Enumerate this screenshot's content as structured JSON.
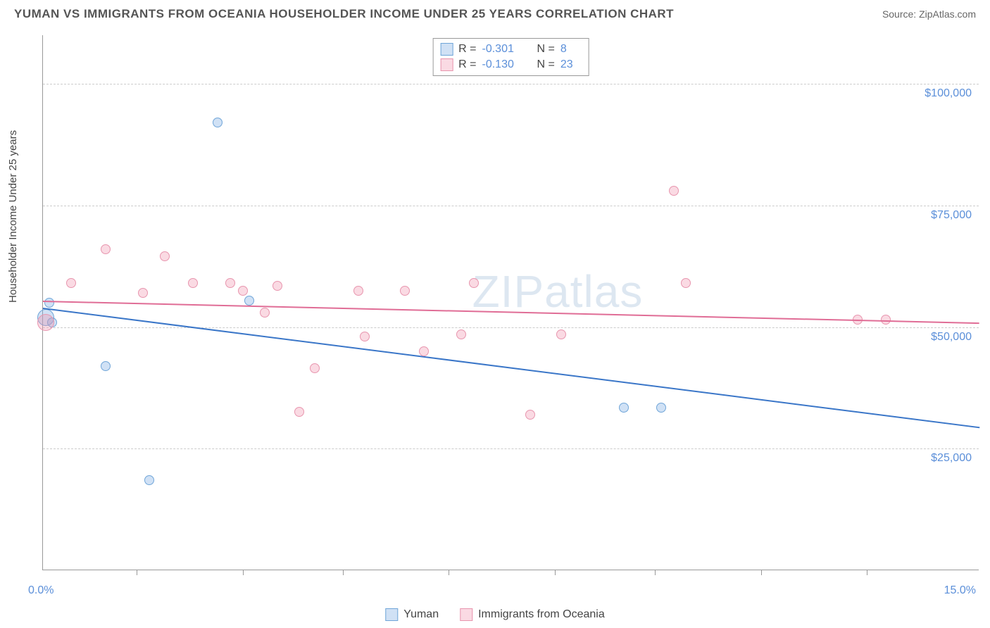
{
  "header": {
    "title": "YUMAN VS IMMIGRANTS FROM OCEANIA HOUSEHOLDER INCOME UNDER 25 YEARS CORRELATION CHART",
    "source": "Source: ZipAtlas.com"
  },
  "chart": {
    "type": "scatter",
    "ylabel": "Householder Income Under 25 years",
    "watermark": "ZIPatlas",
    "background_color": "#ffffff",
    "grid_color": "#cccccc",
    "axis_color": "#999999",
    "tick_label_color": "#5b8fd9",
    "xlim": [
      0,
      15
    ],
    "ylim": [
      0,
      110000
    ],
    "yticks": [
      {
        "value": 25000,
        "label": "$25,000"
      },
      {
        "value": 50000,
        "label": "$50,000"
      },
      {
        "value": 75000,
        "label": "$75,000"
      },
      {
        "value": 100000,
        "label": "$100,000"
      }
    ],
    "xticks": [
      1.5,
      3.2,
      4.8,
      6.5,
      8.2,
      9.8,
      11.5,
      13.2
    ],
    "xaxis_labels": {
      "left": "0.0%",
      "right": "15.0%"
    },
    "series": [
      {
        "name": "Yuman",
        "color_fill": "rgba(120, 170, 225, 0.35)",
        "color_stroke": "#6fa5d8",
        "line_color": "#3a76c8",
        "r": "-0.301",
        "n": "8",
        "points": [
          {
            "x": 0.05,
            "y": 52000,
            "size": 24
          },
          {
            "x": 0.1,
            "y": 55000,
            "size": 14
          },
          {
            "x": 0.15,
            "y": 51000,
            "size": 14
          },
          {
            "x": 1.0,
            "y": 42000,
            "size": 14
          },
          {
            "x": 1.7,
            "y": 18500,
            "size": 14
          },
          {
            "x": 2.8,
            "y": 92000,
            "size": 14
          },
          {
            "x": 3.3,
            "y": 55500,
            "size": 14
          },
          {
            "x": 9.3,
            "y": 33500,
            "size": 14
          },
          {
            "x": 9.9,
            "y": 33500,
            "size": 14
          }
        ],
        "trend": {
          "y_start": 54000,
          "y_end": 29500
        }
      },
      {
        "name": "Immigrants from Oceania",
        "color_fill": "rgba(240, 150, 175, 0.35)",
        "color_stroke": "#e895ae",
        "line_color": "#e06d96",
        "r": "-0.130",
        "n": "23",
        "points": [
          {
            "x": 0.05,
            "y": 51000,
            "size": 24
          },
          {
            "x": 0.45,
            "y": 59000,
            "size": 14
          },
          {
            "x": 1.0,
            "y": 66000,
            "size": 14
          },
          {
            "x": 1.6,
            "y": 57000,
            "size": 14
          },
          {
            "x": 1.95,
            "y": 64500,
            "size": 14
          },
          {
            "x": 2.4,
            "y": 59000,
            "size": 14
          },
          {
            "x": 3.0,
            "y": 59000,
            "size": 14
          },
          {
            "x": 3.2,
            "y": 57500,
            "size": 14
          },
          {
            "x": 3.75,
            "y": 58500,
            "size": 14
          },
          {
            "x": 3.55,
            "y": 53000,
            "size": 14
          },
          {
            "x": 4.1,
            "y": 32500,
            "size": 14
          },
          {
            "x": 4.35,
            "y": 41500,
            "size": 14
          },
          {
            "x": 5.05,
            "y": 57500,
            "size": 14
          },
          {
            "x": 5.15,
            "y": 48000,
            "size": 14
          },
          {
            "x": 5.8,
            "y": 57500,
            "size": 14
          },
          {
            "x": 6.1,
            "y": 45000,
            "size": 14
          },
          {
            "x": 6.7,
            "y": 48500,
            "size": 14
          },
          {
            "x": 6.9,
            "y": 59000,
            "size": 14
          },
          {
            "x": 7.8,
            "y": 32000,
            "size": 14
          },
          {
            "x": 8.3,
            "y": 48500,
            "size": 14
          },
          {
            "x": 10.1,
            "y": 78000,
            "size": 14
          },
          {
            "x": 10.3,
            "y": 59000,
            "size": 14
          },
          {
            "x": 13.05,
            "y": 51500,
            "size": 14
          },
          {
            "x": 13.5,
            "y": 51500,
            "size": 14
          }
        ],
        "trend": {
          "y_start": 55500,
          "y_end": 51000
        }
      }
    ],
    "legend_bottom": [
      {
        "swatch_fill": "rgba(120,170,225,0.35)",
        "swatch_stroke": "#6fa5d8",
        "label": "Yuman"
      },
      {
        "swatch_fill": "rgba(240,150,175,0.35)",
        "swatch_stroke": "#e895ae",
        "label": "Immigrants from Oceania"
      }
    ]
  }
}
